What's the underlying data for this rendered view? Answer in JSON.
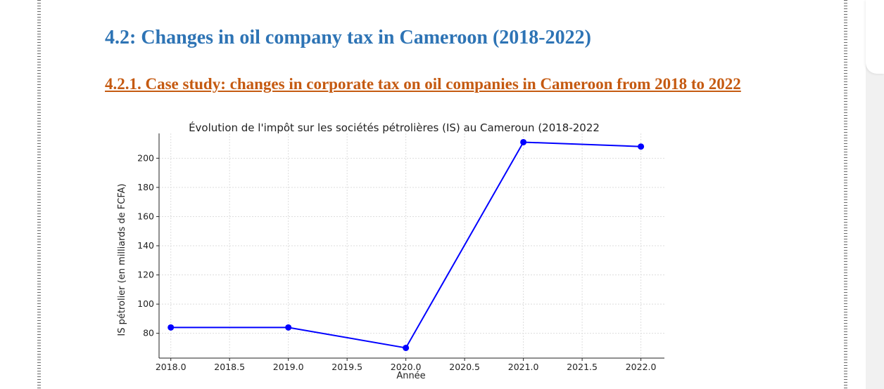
{
  "document": {
    "section_heading": "4.2: Changes in oil company tax in Cameroon (2018-2022)",
    "subsection_heading": "4.2.1. Case study: changes in corporate tax on oil companies in Cameroon from 2018 to 2022"
  },
  "colors": {
    "heading": "#2e74b5",
    "subheading": "#c55a11",
    "series_line": "#0000ff"
  },
  "chart_data": {
    "type": "line",
    "title": "Évolution de l'impôt sur les sociétés pétrolières (IS) au Cameroun (2018-2022",
    "xlabel": "Année",
    "ylabel": "IS pétrolier (en milliards de FCFA)",
    "x": [
      2018,
      2019,
      2020,
      2021,
      2022
    ],
    "series": [
      {
        "values": [
          84,
          84,
          70,
          211,
          208
        ]
      }
    ],
    "x_ticks": [
      "2018.0",
      "2018.5",
      "2019.0",
      "2019.5",
      "2020.0",
      "2020.5",
      "2021.0",
      "2021.5",
      "2022.0"
    ],
    "y_ticks": [
      "80",
      "100",
      "120",
      "140",
      "160",
      "180",
      "200"
    ],
    "xlim": [
      2017.9,
      2022.2
    ],
    "ylim": [
      63,
      217
    ],
    "grid": true,
    "legend": "none"
  }
}
